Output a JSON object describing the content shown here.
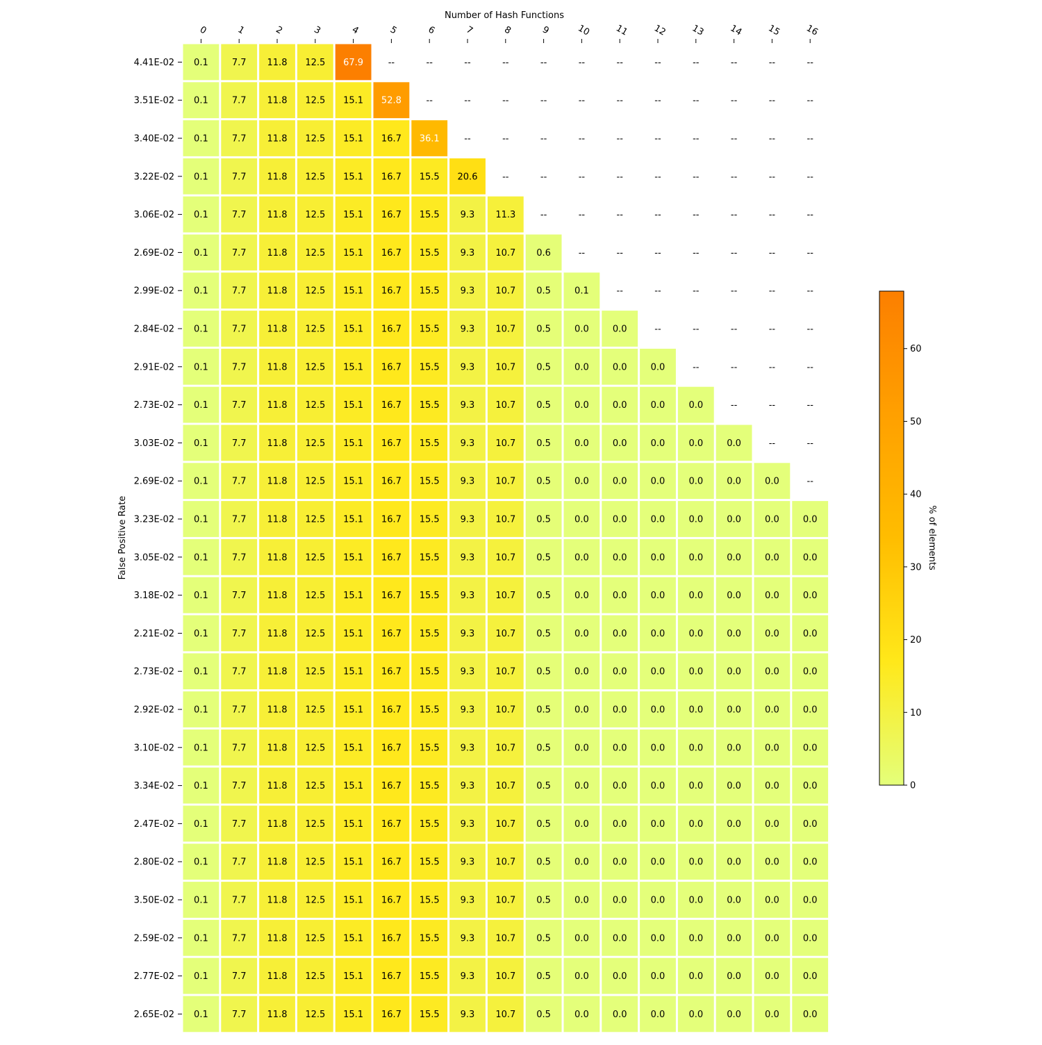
{
  "chart_data": {
    "type": "heatmap",
    "title": "",
    "xlabel": "Number of Hash Functions",
    "ylabel": "False Positive Rate",
    "x": [
      "0",
      "1",
      "2",
      "3",
      "4",
      "5",
      "6",
      "7",
      "8",
      "9",
      "10",
      "11",
      "12",
      "13",
      "14",
      "15",
      "16"
    ],
    "y": [
      "4.41E-02",
      "3.51E-02",
      "3.40E-02",
      "3.22E-02",
      "3.06E-02",
      "2.69E-02",
      "2.99E-02",
      "2.84E-02",
      "2.91E-02",
      "2.73E-02",
      "3.03E-02",
      "2.69E-02",
      "3.23E-02",
      "3.05E-02",
      "3.18E-02",
      "2.21E-02",
      "2.73E-02",
      "2.92E-02",
      "3.10E-02",
      "3.34E-02",
      "2.47E-02",
      "2.80E-02",
      "3.50E-02",
      "2.59E-02",
      "2.77E-02",
      "2.65E-02"
    ],
    "missing_label": "--",
    "values": [
      [
        0.1,
        7.7,
        11.8,
        12.5,
        67.9,
        null,
        null,
        null,
        null,
        null,
        null,
        null,
        null,
        null,
        null,
        null,
        null
      ],
      [
        0.1,
        7.7,
        11.8,
        12.5,
        15.1,
        52.8,
        null,
        null,
        null,
        null,
        null,
        null,
        null,
        null,
        null,
        null,
        null
      ],
      [
        0.1,
        7.7,
        11.8,
        12.5,
        15.1,
        16.7,
        36.1,
        null,
        null,
        null,
        null,
        null,
        null,
        null,
        null,
        null,
        null
      ],
      [
        0.1,
        7.7,
        11.8,
        12.5,
        15.1,
        16.7,
        15.5,
        20.6,
        null,
        null,
        null,
        null,
        null,
        null,
        null,
        null,
        null
      ],
      [
        0.1,
        7.7,
        11.8,
        12.5,
        15.1,
        16.7,
        15.5,
        9.3,
        11.3,
        null,
        null,
        null,
        null,
        null,
        null,
        null,
        null
      ],
      [
        0.1,
        7.7,
        11.8,
        12.5,
        15.1,
        16.7,
        15.5,
        9.3,
        10.7,
        0.6,
        null,
        null,
        null,
        null,
        null,
        null,
        null
      ],
      [
        0.1,
        7.7,
        11.8,
        12.5,
        15.1,
        16.7,
        15.5,
        9.3,
        10.7,
        0.5,
        0.1,
        null,
        null,
        null,
        null,
        null,
        null
      ],
      [
        0.1,
        7.7,
        11.8,
        12.5,
        15.1,
        16.7,
        15.5,
        9.3,
        10.7,
        0.5,
        0.0,
        0.0,
        null,
        null,
        null,
        null,
        null
      ],
      [
        0.1,
        7.7,
        11.8,
        12.5,
        15.1,
        16.7,
        15.5,
        9.3,
        10.7,
        0.5,
        0.0,
        0.0,
        0.0,
        null,
        null,
        null,
        null
      ],
      [
        0.1,
        7.7,
        11.8,
        12.5,
        15.1,
        16.7,
        15.5,
        9.3,
        10.7,
        0.5,
        0.0,
        0.0,
        0.0,
        0.0,
        null,
        null,
        null
      ],
      [
        0.1,
        7.7,
        11.8,
        12.5,
        15.1,
        16.7,
        15.5,
        9.3,
        10.7,
        0.5,
        0.0,
        0.0,
        0.0,
        0.0,
        0.0,
        null,
        null
      ],
      [
        0.1,
        7.7,
        11.8,
        12.5,
        15.1,
        16.7,
        15.5,
        9.3,
        10.7,
        0.5,
        0.0,
        0.0,
        0.0,
        0.0,
        0.0,
        0.0,
        null
      ],
      [
        0.1,
        7.7,
        11.8,
        12.5,
        15.1,
        16.7,
        15.5,
        9.3,
        10.7,
        0.5,
        0.0,
        0.0,
        0.0,
        0.0,
        0.0,
        0.0,
        0.0
      ],
      [
        0.1,
        7.7,
        11.8,
        12.5,
        15.1,
        16.7,
        15.5,
        9.3,
        10.7,
        0.5,
        0.0,
        0.0,
        0.0,
        0.0,
        0.0,
        0.0,
        0.0
      ],
      [
        0.1,
        7.7,
        11.8,
        12.5,
        15.1,
        16.7,
        15.5,
        9.3,
        10.7,
        0.5,
        0.0,
        0.0,
        0.0,
        0.0,
        0.0,
        0.0,
        0.0
      ],
      [
        0.1,
        7.7,
        11.8,
        12.5,
        15.1,
        16.7,
        15.5,
        9.3,
        10.7,
        0.5,
        0.0,
        0.0,
        0.0,
        0.0,
        0.0,
        0.0,
        0.0
      ],
      [
        0.1,
        7.7,
        11.8,
        12.5,
        15.1,
        16.7,
        15.5,
        9.3,
        10.7,
        0.5,
        0.0,
        0.0,
        0.0,
        0.0,
        0.0,
        0.0,
        0.0
      ],
      [
        0.1,
        7.7,
        11.8,
        12.5,
        15.1,
        16.7,
        15.5,
        9.3,
        10.7,
        0.5,
        0.0,
        0.0,
        0.0,
        0.0,
        0.0,
        0.0,
        0.0
      ],
      [
        0.1,
        7.7,
        11.8,
        12.5,
        15.1,
        16.7,
        15.5,
        9.3,
        10.7,
        0.5,
        0.0,
        0.0,
        0.0,
        0.0,
        0.0,
        0.0,
        0.0
      ],
      [
        0.1,
        7.7,
        11.8,
        12.5,
        15.1,
        16.7,
        15.5,
        9.3,
        10.7,
        0.5,
        0.0,
        0.0,
        0.0,
        0.0,
        0.0,
        0.0,
        0.0
      ],
      [
        0.1,
        7.7,
        11.8,
        12.5,
        15.1,
        16.7,
        15.5,
        9.3,
        10.7,
        0.5,
        0.0,
        0.0,
        0.0,
        0.0,
        0.0,
        0.0,
        0.0
      ],
      [
        0.1,
        7.7,
        11.8,
        12.5,
        15.1,
        16.7,
        15.5,
        9.3,
        10.7,
        0.5,
        0.0,
        0.0,
        0.0,
        0.0,
        0.0,
        0.0,
        0.0
      ],
      [
        0.1,
        7.7,
        11.8,
        12.5,
        15.1,
        16.7,
        15.5,
        9.3,
        10.7,
        0.5,
        0.0,
        0.0,
        0.0,
        0.0,
        0.0,
        0.0,
        0.0
      ],
      [
        0.1,
        7.7,
        11.8,
        12.5,
        15.1,
        16.7,
        15.5,
        9.3,
        10.7,
        0.5,
        0.0,
        0.0,
        0.0,
        0.0,
        0.0,
        0.0,
        0.0
      ],
      [
        0.1,
        7.7,
        11.8,
        12.5,
        15.1,
        16.7,
        15.5,
        9.3,
        10.7,
        0.5,
        0.0,
        0.0,
        0.0,
        0.0,
        0.0,
        0.0,
        0.0
      ],
      [
        0.1,
        7.7,
        11.8,
        12.5,
        15.1,
        16.7,
        15.5,
        9.3,
        10.7,
        0.5,
        0.0,
        0.0,
        0.0,
        0.0,
        0.0,
        0.0,
        0.0
      ]
    ],
    "colorbar": {
      "label": "% of elements",
      "range": [
        0,
        67.9
      ],
      "ticks": [
        0,
        10,
        20,
        30,
        40,
        50,
        60
      ],
      "colormap": "Wistia",
      "colors": [
        "#e4ff7a",
        "#ffe81a",
        "#ffbd00",
        "#ffa000",
        "#fc7f00"
      ]
    },
    "grid": false,
    "x_axis_position": "top",
    "x_tick_rotation": "rotated"
  }
}
